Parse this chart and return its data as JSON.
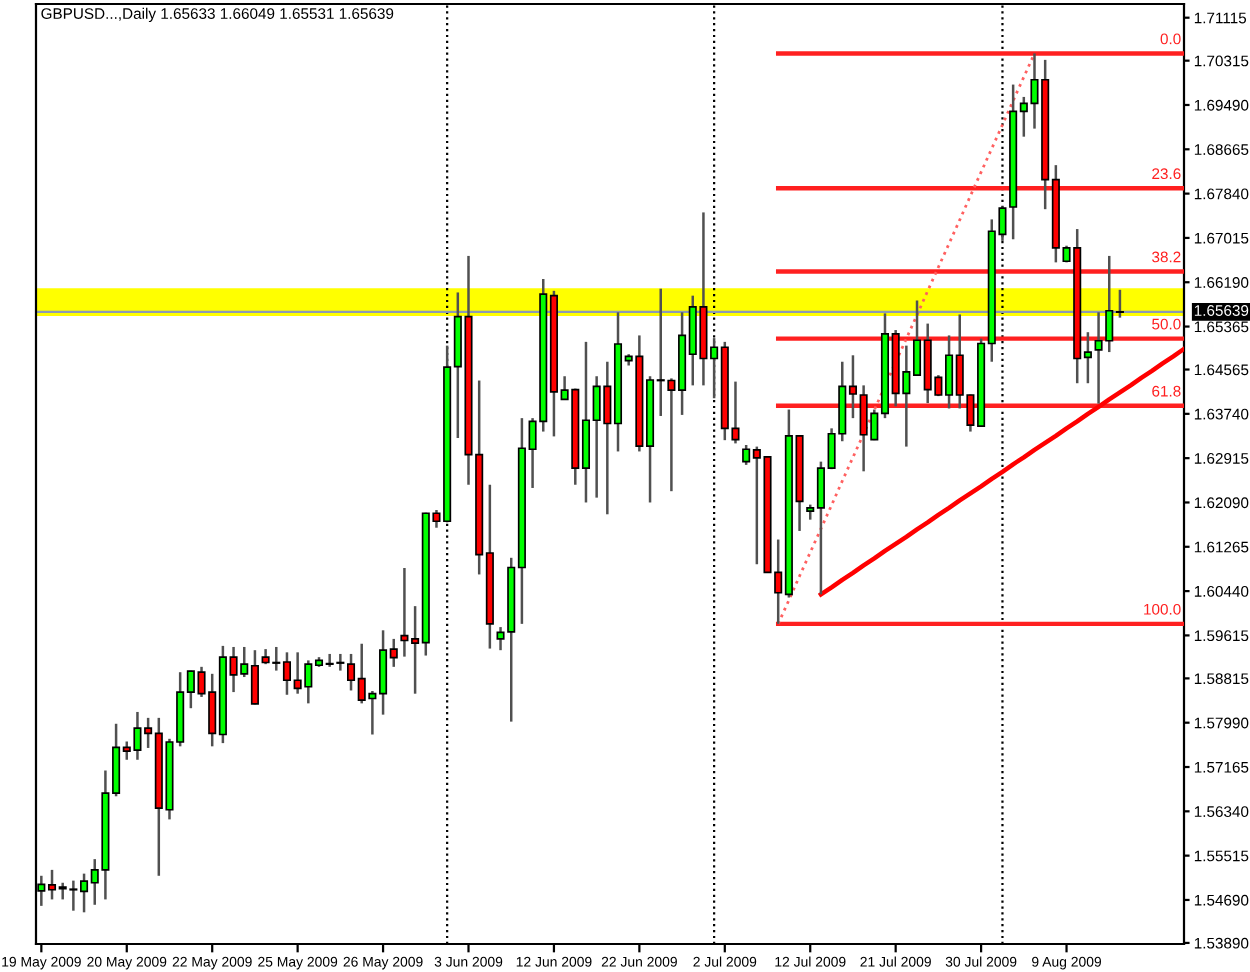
{
  "chart_data": {
    "type": "candlestick",
    "title": "GBPUSD...,Daily 1.65633 1.66049 1.65531 1.65639",
    "grid": "x",
    "categories": [
      "19 May 2009",
      null,
      null,
      null,
      null,
      null,
      null,
      null,
      "20 May 2009",
      null,
      null,
      null,
      null,
      null,
      null,
      null,
      "22 May 2009",
      null,
      null,
      null,
      null,
      null,
      null,
      null,
      "25 May 2009",
      null,
      null,
      null,
      null,
      null,
      null,
      null,
      "26 May 2009",
      null,
      null,
      null,
      null,
      null,
      null,
      null,
      "3 Jun 2009",
      null,
      null,
      null,
      null,
      null,
      null,
      null,
      "12 Jun 2009",
      null,
      null,
      null,
      null,
      null,
      null,
      null,
      "22 Jun 2009",
      null,
      null,
      null,
      null,
      null,
      null,
      null,
      "2 Jul 2009",
      null,
      null,
      null,
      null,
      null,
      null,
      null,
      "12 Jul 2009",
      null,
      null,
      null,
      null,
      null,
      null,
      null,
      "21 Jul 2009",
      null,
      null,
      null,
      null,
      null,
      null,
      null,
      "30 Jul 2009",
      null,
      null,
      null,
      null,
      null,
      null,
      null,
      "9 Aug 2009",
      null,
      null,
      null,
      null,
      null,
      null,
      null,
      null,
      null,
      null,
      null
    ],
    "ohlc": [
      [
        1.5486,
        1.5514,
        1.5458,
        1.5498
      ],
      [
        1.5497,
        1.5525,
        1.547,
        1.5488
      ],
      [
        1.5493,
        1.5501,
        1.547,
        1.549
      ],
      [
        1.5489,
        1.5505,
        1.5449,
        1.5488
      ],
      [
        1.5485,
        1.5518,
        1.5446,
        1.5504
      ],
      [
        1.5501,
        1.5545,
        1.546,
        1.5525
      ],
      [
        1.5525,
        1.571,
        1.547,
        1.5668
      ],
      [
        1.5668,
        1.5797,
        1.5662,
        1.5753
      ],
      [
        1.5753,
        1.5764,
        1.573,
        1.5746
      ],
      [
        1.5748,
        1.5819,
        1.573,
        1.5789
      ],
      [
        1.5789,
        1.5808,
        1.5752,
        1.5779
      ],
      [
        1.5779,
        1.5808,
        1.5514,
        1.564
      ],
      [
        1.5637,
        1.5769,
        1.5619,
        1.5763
      ],
      [
        1.5763,
        1.5893,
        1.5755,
        1.5856
      ],
      [
        1.5856,
        1.5896,
        1.5826,
        1.5895
      ],
      [
        1.5893,
        1.5903,
        1.5847,
        1.5853
      ],
      [
        1.5856,
        1.589,
        1.5755,
        1.5779
      ],
      [
        1.5777,
        1.5942,
        1.5761,
        1.5921
      ],
      [
        1.5921,
        1.594,
        1.5856,
        1.5888
      ],
      [
        1.589,
        1.594,
        1.5884,
        1.5908
      ],
      [
        1.5905,
        1.5934,
        1.5833,
        1.5834
      ],
      [
        1.5921,
        1.5936,
        1.5908,
        1.5911
      ],
      [
        1.5911,
        1.594,
        1.5896,
        1.591
      ],
      [
        1.5912,
        1.593,
        1.5851,
        1.5878
      ],
      [
        1.5878,
        1.593,
        1.5853,
        1.5863
      ],
      [
        1.5866,
        1.5915,
        1.5835,
        1.5908
      ],
      [
        1.5906,
        1.5921,
        1.5903,
        1.5915
      ],
      [
        1.5909,
        1.5927,
        1.5903,
        1.5908
      ],
      [
        1.5911,
        1.5927,
        1.5896,
        1.591
      ],
      [
        1.5908,
        1.5927,
        1.5859,
        1.5878
      ],
      [
        1.5881,
        1.5946,
        1.5835,
        1.5841
      ],
      [
        1.5844,
        1.5858,
        1.5777,
        1.5853
      ],
      [
        1.5853,
        1.5971,
        1.5814,
        1.5934
      ],
      [
        1.5936,
        1.5955,
        1.5903,
        1.592
      ],
      [
        1.5961,
        1.6087,
        1.5922,
        1.5952
      ],
      [
        1.5955,
        1.6016,
        1.5853,
        1.5947
      ],
      [
        1.5948,
        1.619,
        1.5924,
        1.6189
      ],
      [
        1.6189,
        1.6195,
        1.6162,
        1.6174
      ],
      [
        1.6174,
        1.6501,
        1.6172,
        1.6461
      ],
      [
        1.6462,
        1.66,
        1.6329,
        1.6555
      ],
      [
        1.6555,
        1.6668,
        1.6242,
        1.6298
      ],
      [
        1.6298,
        1.6436,
        1.6075,
        1.6112
      ],
      [
        1.6115,
        1.6242,
        1.5937,
        1.5983
      ],
      [
        1.5955,
        1.5977,
        1.5934,
        1.5967
      ],
      [
        1.5968,
        1.6106,
        1.5801,
        1.6088
      ],
      [
        1.6088,
        1.6366,
        1.5983,
        1.631
      ],
      [
        1.6308,
        1.6366,
        1.6236,
        1.636
      ],
      [
        1.636,
        1.6625,
        1.6341,
        1.6597
      ],
      [
        1.6594,
        1.6603,
        1.6332,
        1.6415
      ],
      [
        1.6401,
        1.6444,
        1.64,
        1.6418
      ],
      [
        1.6419,
        1.6421,
        1.6242,
        1.6273
      ],
      [
        1.6273,
        1.6508,
        1.6209,
        1.6362
      ],
      [
        1.6362,
        1.6444,
        1.6218,
        1.6425
      ],
      [
        1.6425,
        1.6471,
        1.6187,
        1.6356
      ],
      [
        1.6356,
        1.6563,
        1.6304,
        1.6504
      ],
      [
        1.6473,
        1.6485,
        1.6464,
        1.6481
      ],
      [
        1.6481,
        1.652,
        1.6304,
        1.6314
      ],
      [
        1.6314,
        1.6444,
        1.6209,
        1.6437
      ],
      [
        1.6437,
        1.6607,
        1.637,
        1.6436
      ],
      [
        1.6436,
        1.644,
        1.623,
        1.6418
      ],
      [
        1.6418,
        1.6563,
        1.6372,
        1.652
      ],
      [
        1.6485,
        1.6594,
        1.6427,
        1.6573
      ],
      [
        1.6573,
        1.6749,
        1.6427,
        1.6477
      ],
      [
        1.6477,
        1.6515,
        1.6403,
        1.6498
      ],
      [
        1.6498,
        1.6508,
        1.6325,
        1.6347
      ],
      [
        1.6347,
        1.6434,
        1.6319,
        1.6326
      ],
      [
        1.6285,
        1.6316,
        1.6279,
        1.6308
      ],
      [
        1.6307,
        1.6313,
        1.6094,
        1.6292
      ],
      [
        1.6294,
        1.6295,
        1.6078,
        1.6079
      ],
      [
        1.6079,
        1.614,
        1.5983,
        1.6041
      ],
      [
        1.6038,
        1.6382,
        1.6032,
        1.6333
      ],
      [
        1.6333,
        1.6334,
        1.6156,
        1.6211
      ],
      [
        1.6193,
        1.6205,
        1.6177,
        1.6199
      ],
      [
        1.6199,
        1.6285,
        1.6038,
        1.6273
      ],
      [
        1.6273,
        1.6347,
        1.6271,
        1.6337
      ],
      [
        1.6337,
        1.6471,
        1.6323,
        1.6425
      ],
      [
        1.6425,
        1.6483,
        1.6366,
        1.6411
      ],
      [
        1.6409,
        1.6427,
        1.6267,
        1.6335
      ],
      [
        1.6326,
        1.6382,
        1.6325,
        1.6375
      ],
      [
        1.6375,
        1.6561,
        1.6366,
        1.6523
      ],
      [
        1.6523,
        1.653,
        1.6388,
        1.6412
      ],
      [
        1.6412,
        1.6501,
        1.6313,
        1.6452
      ],
      [
        1.6446,
        1.6585,
        1.6445,
        1.6511
      ],
      [
        1.6511,
        1.6542,
        1.6394,
        1.6419
      ],
      [
        1.6442,
        1.6446,
        1.6407,
        1.6409
      ],
      [
        1.6409,
        1.652,
        1.6384,
        1.6483
      ],
      [
        1.6483,
        1.6559,
        1.6384,
        1.6409
      ],
      [
        1.6409,
        1.641,
        1.6341,
        1.6353
      ],
      [
        1.6351,
        1.6514,
        1.635,
        1.6505
      ],
      [
        1.6505,
        1.6736,
        1.6471,
        1.6714
      ],
      [
        1.6708,
        1.676,
        1.6696,
        1.6757
      ],
      [
        1.6759,
        1.6987,
        1.6699,
        1.6937
      ],
      [
        1.6937,
        1.6964,
        1.689,
        1.6952
      ],
      [
        1.6952,
        1.7045,
        1.6905,
        1.6996
      ],
      [
        1.6996,
        1.7033,
        1.6755,
        1.681
      ],
      [
        1.681,
        1.6837,
        1.6656,
        1.6683
      ],
      [
        1.6658,
        1.6687,
        1.6656,
        1.6683
      ],
      [
        1.6683,
        1.6718,
        1.6431,
        1.6477
      ],
      [
        1.6479,
        1.6526,
        1.6431,
        1.6489
      ],
      [
        1.6493,
        1.6563,
        1.6393,
        1.651
      ],
      [
        1.651,
        1.6668,
        1.6489,
        1.6566
      ],
      [
        1.65633,
        1.66049,
        1.65531,
        1.65639
      ],
      null,
      null,
      null,
      null,
      null,
      null
    ],
    "colors": [
      "#00ff00",
      "#ff0000",
      "#ff0000",
      "#ff0000",
      "#00ff00",
      "#00ff00",
      "#00ff00",
      "#00ff00",
      "#ff0000",
      "#00ff00",
      "#ff0000",
      "#ff0000",
      "#00ff00",
      "#00ff00",
      "#00ff00",
      "#ff0000",
      "#ff0000",
      "#00ff00",
      "#ff0000",
      "#00ff00",
      "#ff0000",
      "#ff0000",
      "#ff0000",
      "#ff0000",
      "#ff0000",
      "#00ff00",
      "#00ff00",
      "#ff0000",
      "#ff0000",
      "#ff0000",
      "#ff0000",
      "#00ff00",
      "#00ff00",
      "#ff0000",
      "#ff0000",
      "#ff0000",
      "#00ff00",
      "#ff0000",
      "#00ff00",
      "#00ff00",
      "#ff0000",
      "#ff0000",
      "#ff0000",
      "#00ff00",
      "#00ff00",
      "#00ff00",
      "#00ff00",
      "#00ff00",
      "#ff0000",
      "#00ff00",
      "#ff0000",
      "#00ff00",
      "#00ff00",
      "#ff0000",
      "#00ff00",
      "#00ff00",
      "#ff0000",
      "#00ff00",
      "#ff0000",
      "#ff0000",
      "#00ff00",
      "#00ff00",
      "#ff0000",
      "#00ff00",
      "#ff0000",
      "#ff0000",
      "#00ff00",
      "#ff0000",
      "#ff0000",
      "#ff0000",
      "#00ff00",
      "#ff0000",
      "#00ff00",
      "#00ff00",
      "#00ff00",
      "#00ff00",
      "#ff0000",
      "#ff0000",
      "#00ff00",
      "#00ff00",
      "#ff0000",
      "#00ff00",
      "#00ff00",
      "#ff0000",
      "#ff0000",
      "#00ff00",
      "#ff0000",
      "#ff0000",
      "#00ff00",
      "#00ff00",
      "#00ff00",
      "#00ff00",
      "#00ff00",
      "#00ff00",
      "#ff0000",
      "#ff0000",
      "#00ff00",
      "#ff0000",
      "#00ff00",
      "#00ff00",
      "#00ff00",
      "#00ff00",
      null,
      null,
      null,
      null,
      null,
      null
    ],
    "ylim": [
      1.5387,
      1.7137
    ],
    "yticks": [
      1.71115,
      1.70315,
      {
        "value": 1.6949,
        "label": "1.69490"
      },
      1.68665,
      {
        "value": 1.6784,
        "label": "1.67840"
      },
      1.67015,
      {
        "value": 1.6619,
        "label": "1.66190"
      },
      1.65365,
      1.64565,
      {
        "value": 1.6374,
        "label": "1.63740"
      },
      1.62915,
      {
        "value": 1.6209,
        "label": "1.62090"
      },
      1.61265,
      {
        "value": 1.6044,
        "label": "1.60440"
      },
      1.59615,
      1.58815,
      {
        "value": 1.5799,
        "label": "1.57990"
      },
      1.57165,
      {
        "value": 1.5634,
        "label": "1.56340"
      },
      1.55515,
      {
        "value": 1.5469,
        "label": "1.54690"
      },
      {
        "value": 1.5389,
        "label": "1.53890"
      }
    ],
    "series": [
      {
        "type": "line",
        "name": "0.0",
        "color": "#ff2020",
        "values": [
          null,
          null,
          null,
          null,
          null,
          null,
          null,
          null,
          null,
          null,
          null,
          null,
          null,
          null,
          null,
          null,
          null,
          null,
          null,
          null,
          null,
          null,
          null,
          null,
          null,
          null,
          null,
          null,
          null,
          null,
          null,
          null,
          null,
          null,
          null,
          null,
          null,
          null,
          null,
          null,
          null,
          null,
          null,
          null,
          null,
          null,
          null,
          null,
          null,
          null,
          null,
          null,
          null,
          null,
          null,
          null,
          null,
          null,
          null,
          null,
          null,
          null,
          null,
          null,
          null,
          null,
          null,
          null,
          null,
          1.7045,
          1.7045,
          1.7045,
          1.7045,
          1.7045,
          1.7045,
          1.7045,
          1.7045,
          1.7045,
          1.7045,
          1.7045,
          1.7045,
          1.7045,
          1.7045,
          1.7045,
          1.7045,
          1.7045,
          1.7045,
          1.7045,
          1.7045,
          1.7045,
          1.7045,
          1.7045,
          1.7045,
          1.7045,
          1.7045,
          1.7045,
          1.7045,
          1.7045,
          1.7045,
          1.7045,
          1.7045,
          1.7045,
          1.7045,
          1.7045,
          1.7045,
          1.7045,
          1.7045,
          1.7045
        ]
      },
      {
        "type": "line",
        "name": "23.6",
        "color": "#ff2020",
        "values": [
          null,
          null,
          null,
          null,
          null,
          null,
          null,
          null,
          null,
          null,
          null,
          null,
          null,
          null,
          null,
          null,
          null,
          null,
          null,
          null,
          null,
          null,
          null,
          null,
          null,
          null,
          null,
          null,
          null,
          null,
          null,
          null,
          null,
          null,
          null,
          null,
          null,
          null,
          null,
          null,
          null,
          null,
          null,
          null,
          null,
          null,
          null,
          null,
          null,
          null,
          null,
          null,
          null,
          null,
          null,
          null,
          null,
          null,
          null,
          null,
          null,
          null,
          null,
          null,
          null,
          null,
          null,
          null,
          null,
          1.6794,
          1.6794,
          1.6794,
          1.6794,
          1.6794,
          1.6794,
          1.6794,
          1.6794,
          1.6794,
          1.6794,
          1.6794,
          1.6794,
          1.6794,
          1.6794,
          1.6794,
          1.6794,
          1.6794,
          1.6794,
          1.6794,
          1.6794,
          1.6794,
          1.6794,
          1.6794,
          1.6794,
          1.6794,
          1.6794,
          1.6794,
          1.6794,
          1.6794,
          1.6794,
          1.6794,
          1.6794,
          1.6794,
          1.6794,
          1.6794,
          1.6794,
          1.6794,
          1.6794,
          1.6794
        ]
      },
      {
        "type": "line",
        "name": "38.2",
        "color": "#ff2020",
        "values": [
          null,
          null,
          null,
          null,
          null,
          null,
          null,
          null,
          null,
          null,
          null,
          null,
          null,
          null,
          null,
          null,
          null,
          null,
          null,
          null,
          null,
          null,
          null,
          null,
          null,
          null,
          null,
          null,
          null,
          null,
          null,
          null,
          null,
          null,
          null,
          null,
          null,
          null,
          null,
          null,
          null,
          null,
          null,
          null,
          null,
          null,
          null,
          null,
          null,
          null,
          null,
          null,
          null,
          null,
          null,
          null,
          null,
          null,
          null,
          null,
          null,
          null,
          null,
          null,
          null,
          null,
          null,
          null,
          null,
          1.6639,
          1.6639,
          1.6639,
          1.6639,
          1.6639,
          1.6639,
          1.6639,
          1.6639,
          1.6639,
          1.6639,
          1.6639,
          1.6639,
          1.6639,
          1.6639,
          1.6639,
          1.6639,
          1.6639,
          1.6639,
          1.6639,
          1.6639,
          1.6639,
          1.6639,
          1.6639,
          1.6639,
          1.6639,
          1.6639,
          1.6639,
          1.6639,
          1.6639,
          1.6639,
          1.6639,
          1.6639,
          1.6639,
          1.6639,
          1.6639,
          1.6639,
          1.6639,
          1.6639,
          1.6639
        ]
      },
      {
        "type": "line",
        "name": "50.0",
        "color": "#ff2020",
        "values": [
          null,
          null,
          null,
          null,
          null,
          null,
          null,
          null,
          null,
          null,
          null,
          null,
          null,
          null,
          null,
          null,
          null,
          null,
          null,
          null,
          null,
          null,
          null,
          null,
          null,
          null,
          null,
          null,
          null,
          null,
          null,
          null,
          null,
          null,
          null,
          null,
          null,
          null,
          null,
          null,
          null,
          null,
          null,
          null,
          null,
          null,
          null,
          null,
          null,
          null,
          null,
          null,
          null,
          null,
          null,
          null,
          null,
          null,
          null,
          null,
          null,
          null,
          null,
          null,
          null,
          null,
          null,
          null,
          null,
          1.6514,
          1.6514,
          1.6514,
          1.6514,
          1.6514,
          1.6514,
          1.6514,
          1.6514,
          1.6514,
          1.6514,
          1.6514,
          1.6514,
          1.6514,
          1.6514,
          1.6514,
          1.6514,
          1.6514,
          1.6514,
          1.6514,
          1.6514,
          1.6514,
          1.6514,
          1.6514,
          1.6514,
          1.6514,
          1.6514,
          1.6514,
          1.6514,
          1.6514,
          1.6514,
          1.6514,
          1.6514,
          1.6514,
          1.6514,
          1.6514,
          1.6514,
          1.6514,
          1.6514,
          1.6514
        ]
      },
      {
        "type": "line",
        "name": "61.8",
        "color": "#ff2020",
        "values": [
          null,
          null,
          null,
          null,
          null,
          null,
          null,
          null,
          null,
          null,
          null,
          null,
          null,
          null,
          null,
          null,
          null,
          null,
          null,
          null,
          null,
          null,
          null,
          null,
          null,
          null,
          null,
          null,
          null,
          null,
          null,
          null,
          null,
          null,
          null,
          null,
          null,
          null,
          null,
          null,
          null,
          null,
          null,
          null,
          null,
          null,
          null,
          null,
          null,
          null,
          null,
          null,
          null,
          null,
          null,
          null,
          null,
          null,
          null,
          null,
          null,
          null,
          null,
          null,
          null,
          null,
          null,
          null,
          null,
          1.6389,
          1.6389,
          1.6389,
          1.6389,
          1.6389,
          1.6389,
          1.6389,
          1.6389,
          1.6389,
          1.6389,
          1.6389,
          1.6389,
          1.6389,
          1.6389,
          1.6389,
          1.6389,
          1.6389,
          1.6389,
          1.6389,
          1.6389,
          1.6389,
          1.6389,
          1.6389,
          1.6389,
          1.6389,
          1.6389,
          1.6389,
          1.6389,
          1.6389,
          1.6389,
          1.6389,
          1.6389,
          1.6389,
          1.6389,
          1.6389,
          1.6389,
          1.6389,
          1.6389,
          1.6389
        ]
      },
      {
        "type": "line",
        "name": "100.0",
        "color": "#ff2020",
        "values": [
          null,
          null,
          null,
          null,
          null,
          null,
          null,
          null,
          null,
          null,
          null,
          null,
          null,
          null,
          null,
          null,
          null,
          null,
          null,
          null,
          null,
          null,
          null,
          null,
          null,
          null,
          null,
          null,
          null,
          null,
          null,
          null,
          null,
          null,
          null,
          null,
          null,
          null,
          null,
          null,
          null,
          null,
          null,
          null,
          null,
          null,
          null,
          null,
          null,
          null,
          null,
          null,
          null,
          null,
          null,
          null,
          null,
          null,
          null,
          null,
          null,
          null,
          null,
          null,
          null,
          null,
          null,
          null,
          null,
          1.5983,
          1.5983,
          1.5983,
          1.5983,
          1.5983,
          1.5983,
          1.5983,
          1.5983,
          1.5983,
          1.5983,
          1.5983,
          1.5983,
          1.5983,
          1.5983,
          1.5983,
          1.5983,
          1.5983,
          1.5983,
          1.5983,
          1.5983,
          1.5983,
          1.5983,
          1.5983,
          1.5983,
          1.5983,
          1.5983,
          1.5983,
          1.5983,
          1.5983,
          1.5983,
          1.5983,
          1.5983,
          1.5983,
          1.5983,
          1.5983,
          1.5983,
          1.5983,
          1.5983,
          1.5983
        ]
      },
      {
        "type": "line",
        "color": "#ff6060",
        "line_style": "dotted",
        "values": [
          null,
          null,
          null,
          null,
          null,
          null,
          null,
          null,
          null,
          null,
          null,
          null,
          null,
          null,
          null,
          null,
          null,
          null,
          null,
          null,
          null,
          null,
          null,
          null,
          null,
          null,
          null,
          null,
          null,
          null,
          null,
          null,
          null,
          null,
          null,
          null,
          null,
          null,
          null,
          null,
          null,
          null,
          null,
          null,
          null,
          null,
          null,
          null,
          null,
          null,
          null,
          null,
          null,
          null,
          null,
          null,
          null,
          null,
          null,
          null,
          null,
          null,
          null,
          null,
          null,
          null,
          null,
          null,
          null,
          1.5983,
          1.6027,
          1.6072,
          1.6116,
          1.616,
          1.6204,
          1.6249,
          1.6293,
          1.6337,
          1.6381,
          1.6426,
          1.647,
          1.6514,
          1.6558,
          1.6603,
          1.6647,
          1.6691,
          1.6735,
          1.678,
          1.6824,
          1.6868,
          1.6912,
          1.6957,
          1.7001,
          1.7045,
          null,
          null,
          null,
          null,
          null,
          null,
          null,
          null,
          null,
          null,
          null,
          null,
          null,
          null
        ]
      },
      {
        "type": "line",
        "color": "#ff0000",
        "values": [
          null,
          null,
          null,
          null,
          null,
          null,
          null,
          null,
          null,
          null,
          null,
          null,
          null,
          null,
          null,
          null,
          null,
          null,
          null,
          null,
          null,
          null,
          null,
          null,
          null,
          null,
          null,
          null,
          null,
          null,
          null,
          null,
          null,
          null,
          null,
          null,
          null,
          null,
          null,
          null,
          null,
          null,
          null,
          null,
          null,
          null,
          null,
          null,
          null,
          null,
          null,
          null,
          null,
          null,
          null,
          null,
          null,
          null,
          null,
          null,
          null,
          null,
          null,
          null,
          null,
          null,
          null,
          null,
          null,
          null,
          null,
          null,
          null,
          1.6038,
          1.6051,
          1.6065,
          1.6078,
          1.6092,
          1.6105,
          1.6119,
          1.6132,
          1.6145,
          1.6159,
          1.6172,
          1.6186,
          1.6199,
          1.6213,
          1.6226,
          1.6239,
          1.6253,
          1.6266,
          1.628,
          1.6293,
          1.6307,
          1.632,
          1.6333,
          1.6347,
          1.636,
          1.6374,
          1.6387,
          1.6401,
          1.6414,
          1.6427,
          1.6441,
          1.6454,
          1.6468,
          1.6481,
          1.6495
        ]
      }
    ],
    "bands": [
      {
        "axis": "y",
        "from": 1.6556,
        "to": 1.6608,
        "color": "#ffff00"
      }
    ],
    "ref_lines": [
      {
        "axis": "y",
        "value": 1.65639,
        "label": "1.65639",
        "color": "#8c9bb5"
      }
    ]
  }
}
